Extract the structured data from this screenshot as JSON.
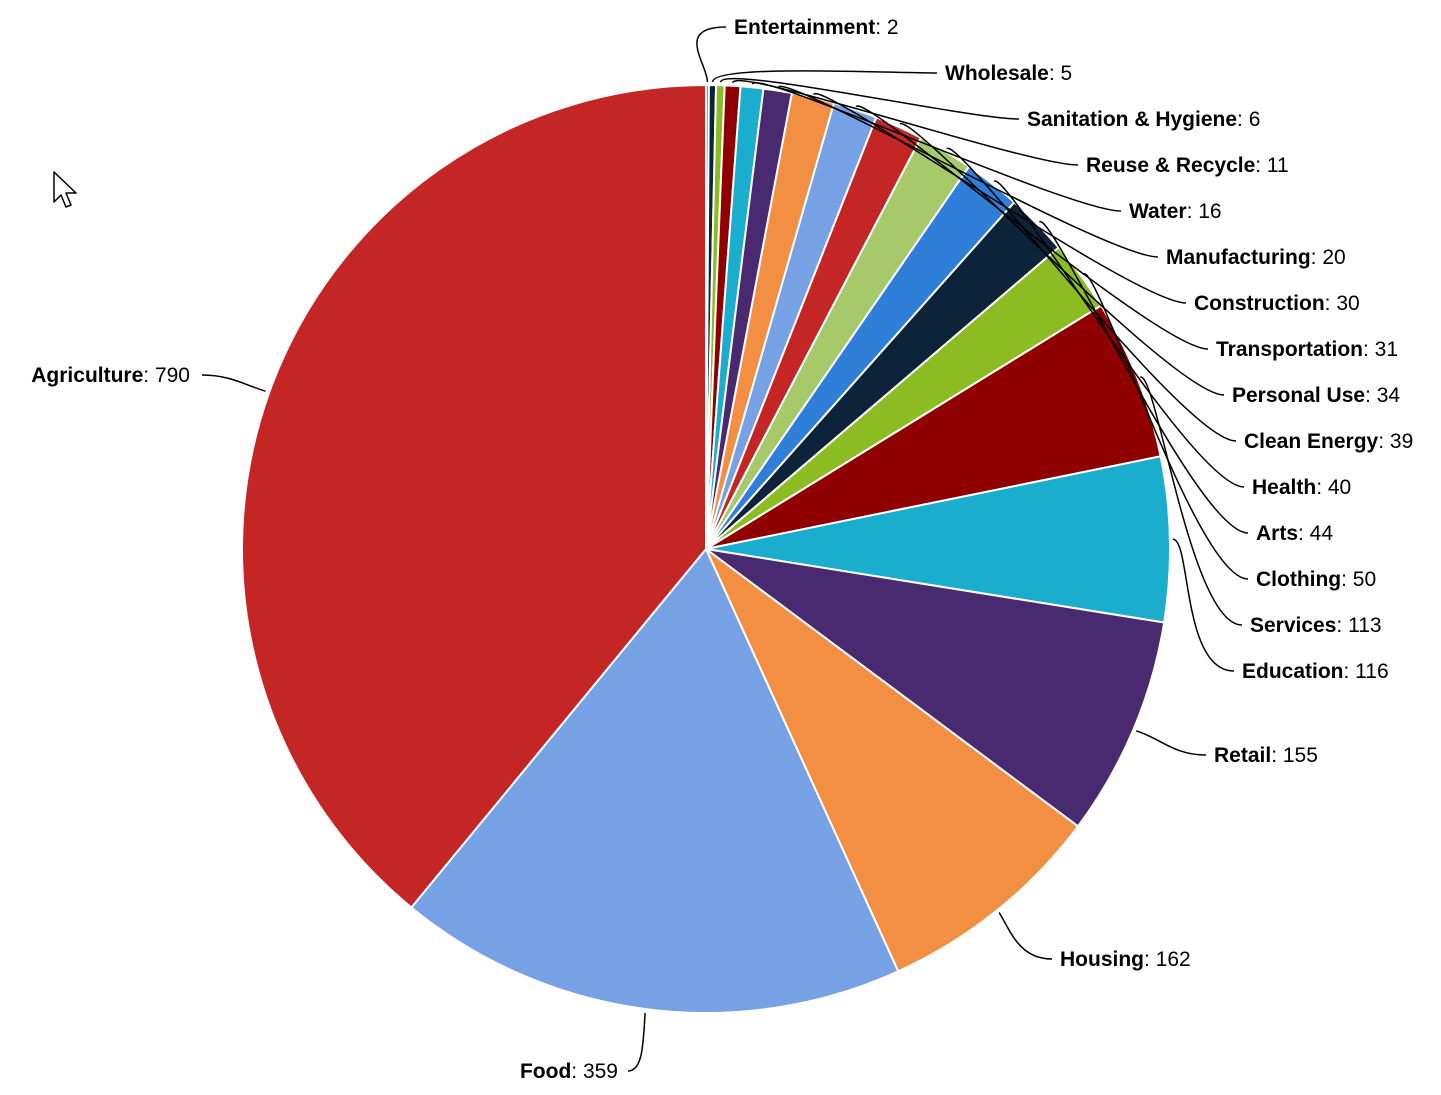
{
  "chart_data": {
    "type": "pie",
    "title": "",
    "order": "clockwise-from-top, smallest first",
    "slices": [
      {
        "label": "Entertainment",
        "value": 2,
        "color": "#8bbc21"
      },
      {
        "label": "Wholesale",
        "value": 5,
        "color": "#910000"
      },
      {
        "label": "Sanitation & Hygiene",
        "value": 6,
        "color": "#1aadce"
      },
      {
        "label": "Reuse & Recycle",
        "value": 11,
        "color": "#492970"
      },
      {
        "label": "Water",
        "value": 16,
        "color": "#f28f43"
      },
      {
        "label": "Manufacturing",
        "value": 20,
        "color": "#77a1e5"
      },
      {
        "label": "Construction",
        "value": 30,
        "color": "#c42525"
      },
      {
        "label": "Transportation",
        "value": 31,
        "color": "#a6c96a"
      },
      {
        "label": "Personal Use",
        "value": 34,
        "color": "#2f7ed8"
      },
      {
        "label": "Clean Energy",
        "value": 39,
        "color": "#0d233a"
      },
      {
        "label": "Health",
        "value": 40,
        "color": "#8bbc21"
      },
      {
        "label": "Arts",
        "value": 44,
        "color": "#910000"
      },
      {
        "label": "Clothing",
        "value": 50,
        "color": "#1aadce"
      },
      {
        "label": "Services",
        "value": 113,
        "color": "#492970"
      },
      {
        "label": "Education",
        "value": 116,
        "color": "#f28f43"
      },
      {
        "label": "Retail",
        "value": 155,
        "color": "#77a1e5"
      },
      {
        "label": "Housing",
        "value": 162,
        "color": "#c42525"
      },
      {
        "label": "Food",
        "value": 359,
        "color": "#a6c96a"
      },
      {
        "label": "Agriculture",
        "value": 790,
        "color": "#2f7ed8"
      }
    ]
  }
}
